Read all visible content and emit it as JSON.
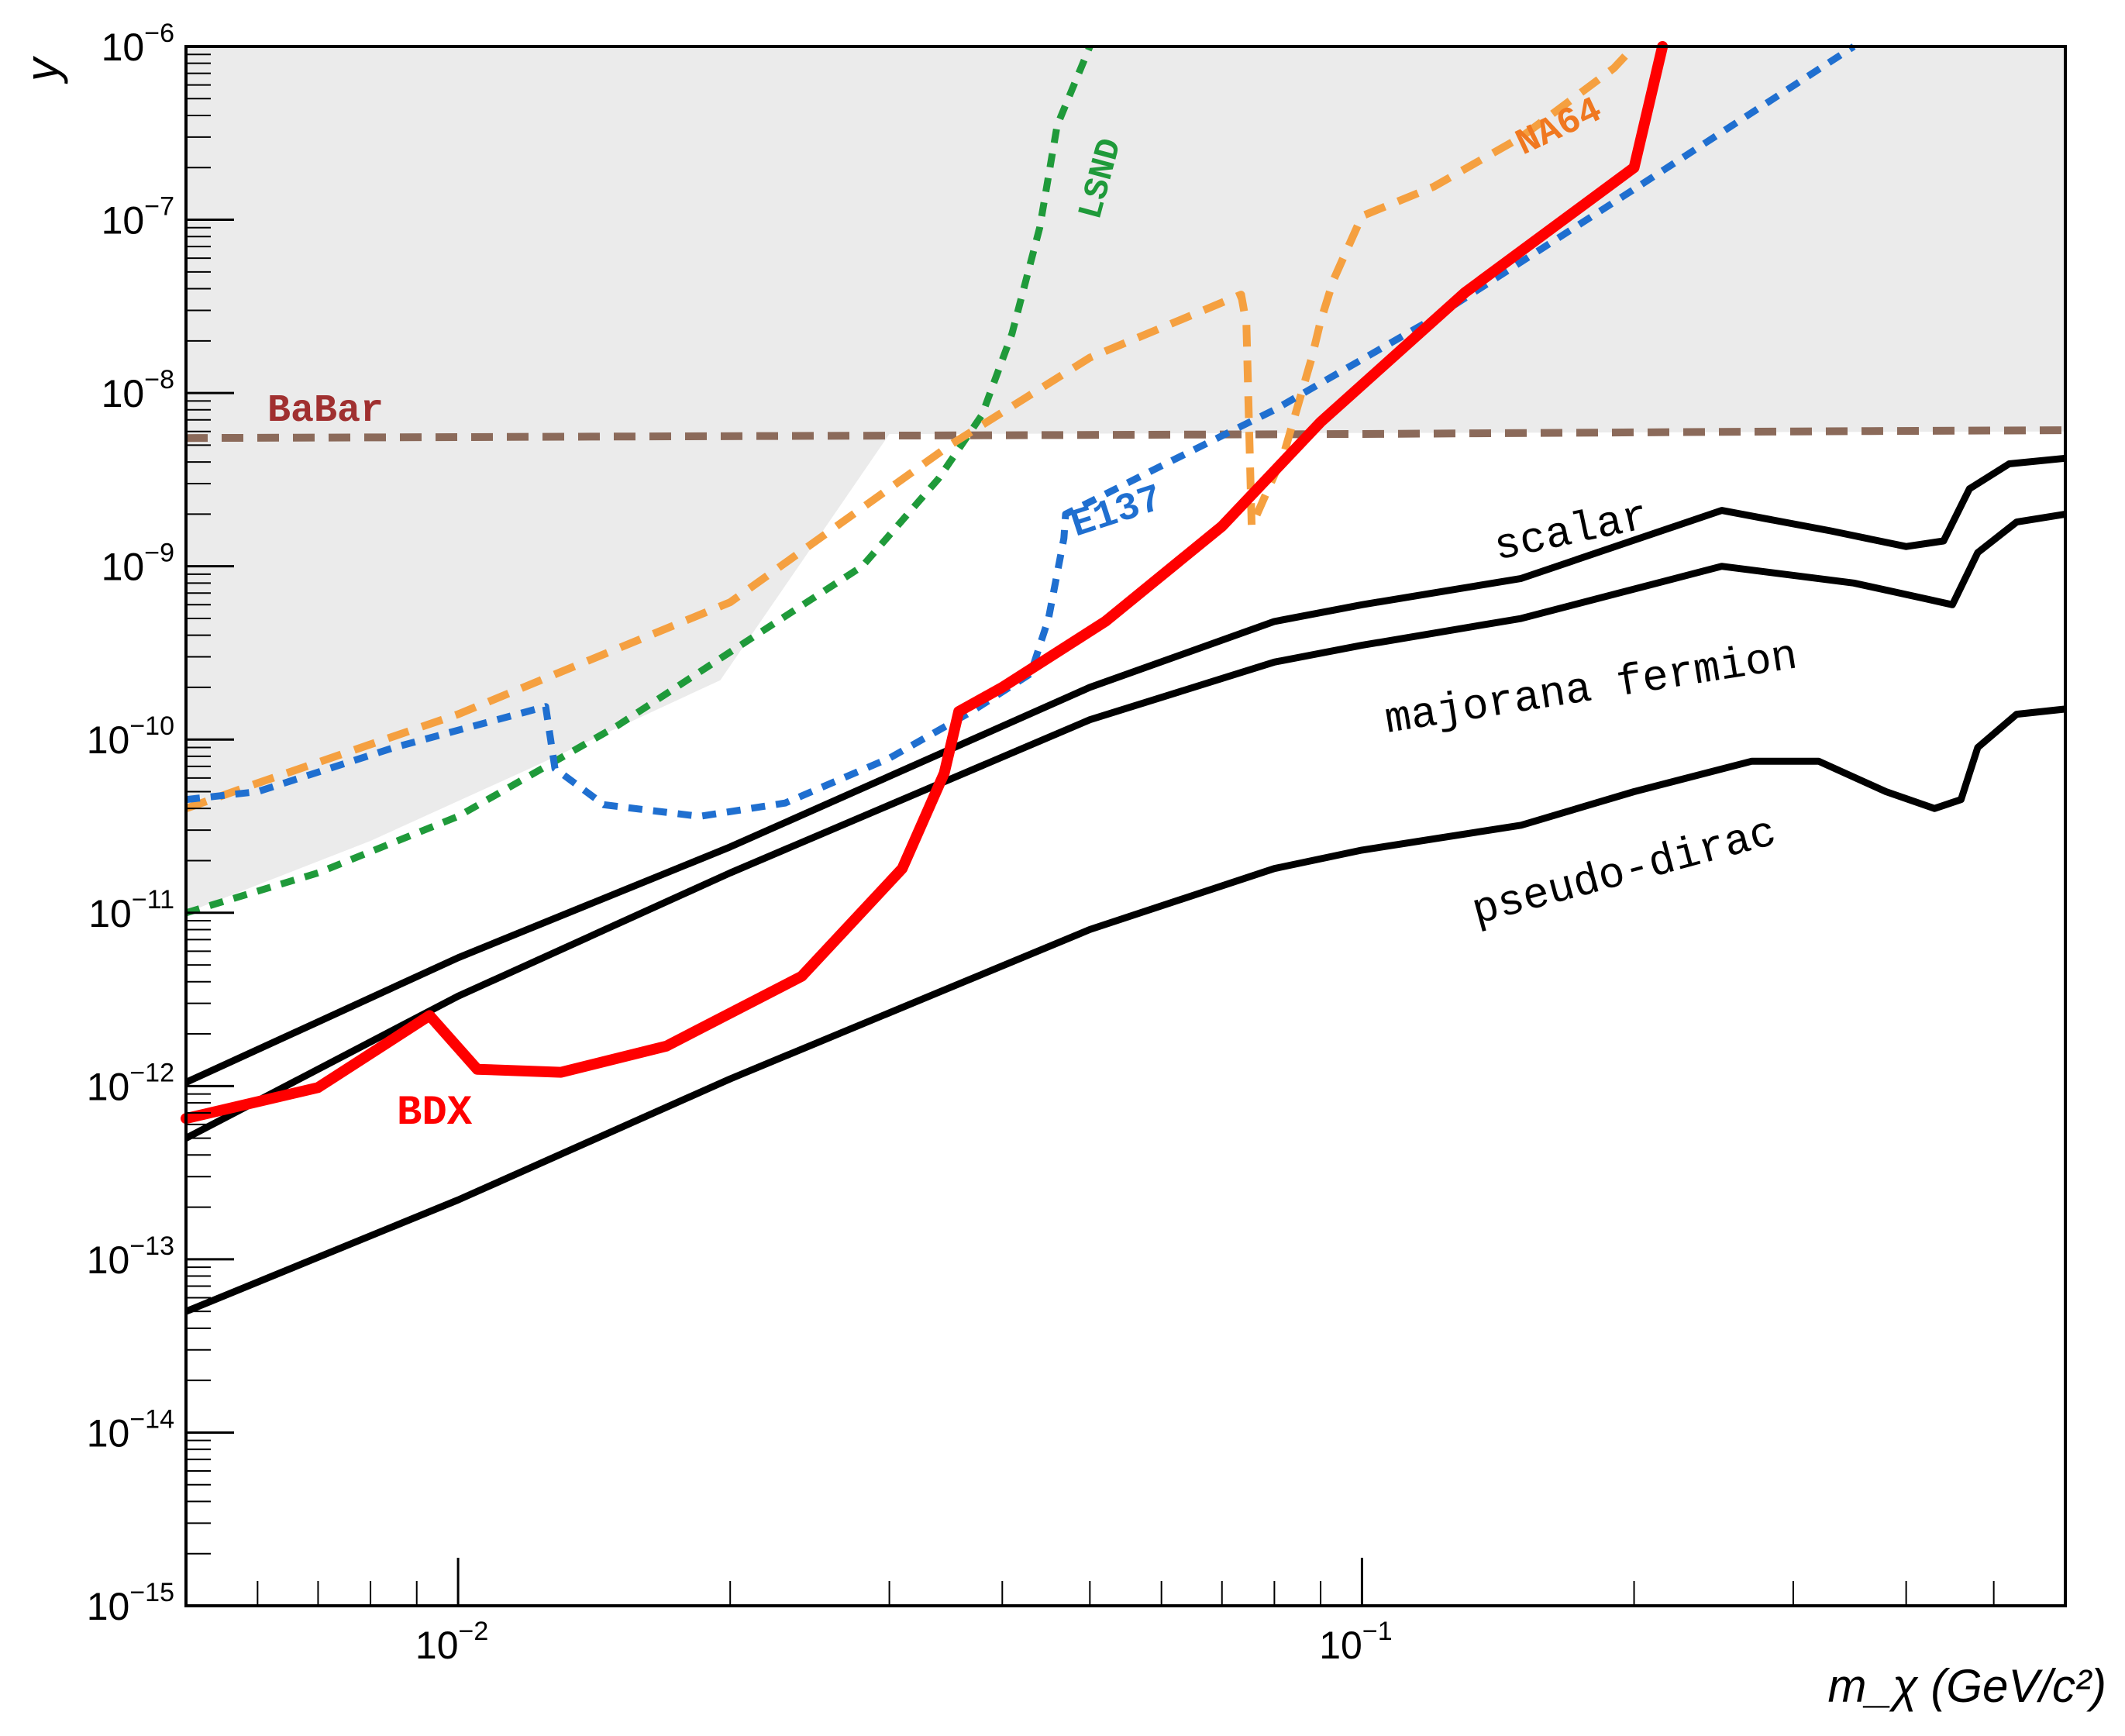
{
  "chart_data": {
    "type": "line",
    "title": "",
    "xlabel": "m_χ (GeV/c²)",
    "ylabel": "y",
    "xscale": "log",
    "yscale": "log",
    "xlim": [
      0.005,
      0.6
    ],
    "ylim": [
      1e-15,
      1e-06
    ],
    "x_ticks": [
      {
        "value": 0.01,
        "base": "10",
        "exp": "−2"
      },
      {
        "value": 0.1,
        "base": "10",
        "exp": "−1"
      }
    ],
    "y_ticks": [
      {
        "value": 1e-06,
        "base": "10",
        "exp": "−6"
      },
      {
        "value": 1e-07,
        "base": "10",
        "exp": "−7"
      },
      {
        "value": 1e-08,
        "base": "10",
        "exp": "−8"
      },
      {
        "value": 1e-09,
        "base": "10",
        "exp": "−9"
      },
      {
        "value": 1e-10,
        "base": "10",
        "exp": "−10"
      },
      {
        "value": 1e-11,
        "base": "10",
        "exp": "−11"
      },
      {
        "value": 1e-12,
        "base": "10",
        "exp": "−12"
      },
      {
        "value": 1e-13,
        "base": "10",
        "exp": "−13"
      },
      {
        "value": 1e-14,
        "base": "10",
        "exp": "−14"
      },
      {
        "value": 1e-15,
        "base": "10",
        "exp": "−15"
      }
    ],
    "colors": {
      "excluded_fill": "#ebebeb",
      "bdx": "#ff0000",
      "babar": "#8b6a5a",
      "babar_label": "#a03030",
      "e137": "#1f6fd0",
      "lsnd": "#1f9a3a",
      "na64": "#f5a040",
      "na64_label": "#f07820",
      "theory": "#000000"
    },
    "excluded_region": [
      [
        0.005,
        1e-06
      ],
      [
        0.6,
        1e-06
      ],
      [
        0.6,
        6e-09
      ],
      [
        0.03,
        5.8e-09
      ],
      [
        0.027,
        2.6e-09
      ],
      [
        0.0195,
        2.2e-10
      ],
      [
        0.012,
        6.8e-11
      ],
      [
        0.008,
        2.6e-11
      ],
      [
        0.005,
        1e-11
      ]
    ],
    "series": [
      {
        "name": "BDX",
        "style": "solid-thick",
        "color_key": "bdx",
        "points": [
          [
            0.005,
            6.5e-13
          ],
          [
            0.007,
            9.8e-13
          ],
          [
            0.0093,
            2.55e-12
          ],
          [
            0.0105,
            1.25e-12
          ],
          [
            0.013,
            1.2e-12
          ],
          [
            0.017,
            1.7e-12
          ],
          [
            0.024,
            4.3e-12
          ],
          [
            0.031,
            1.8e-11
          ],
          [
            0.0345,
            6.4e-11
          ],
          [
            0.0358,
            1.45e-10
          ],
          [
            0.04,
            2e-10
          ],
          [
            0.052,
            4.8e-10
          ],
          [
            0.07,
            1.7e-09
          ],
          [
            0.09,
            6.8e-09
          ],
          [
            0.13,
            3.8e-08
          ],
          [
            0.2,
            2e-07
          ],
          [
            0.215,
            1e-06
          ]
        ]
      },
      {
        "name": "BaBar",
        "style": "dashed",
        "color_key": "babar",
        "points": [
          [
            0.005,
            5.5e-09
          ],
          [
            0.1,
            5.8e-09
          ],
          [
            0.3,
            6e-09
          ],
          [
            0.6,
            6.1e-09
          ]
        ]
      },
      {
        "name": "E137",
        "style": "dotted",
        "color_key": "e137",
        "points": [
          [
            0.005,
            4.5e-11
          ],
          [
            0.006,
            5e-11
          ],
          [
            0.0085,
            9e-11
          ],
          [
            0.0125,
            1.55e-10
          ],
          [
            0.0128,
            6.8e-11
          ],
          [
            0.0145,
            4.2e-11
          ],
          [
            0.0185,
            3.6e-11
          ],
          [
            0.023,
            4.3e-11
          ],
          [
            0.03,
            7.8e-11
          ],
          [
            0.037,
            1.45e-10
          ],
          [
            0.043,
            2.4e-10
          ],
          [
            0.045,
            5e-10
          ],
          [
            0.0468,
            1.45e-09
          ],
          [
            0.047,
            2e-09
          ],
          [
            0.06,
            3.8e-09
          ],
          [
            0.08,
            8e-09
          ],
          [
            0.12,
            2.7e-08
          ],
          [
            0.2,
            1.5e-07
          ],
          [
            0.35,
            1e-06
          ]
        ]
      },
      {
        "name": "LSND",
        "style": "dotted",
        "color_key": "lsnd",
        "points": [
          [
            0.005,
            1e-11
          ],
          [
            0.007,
            1.7e-11
          ],
          [
            0.01,
            3.6e-11
          ],
          [
            0.015,
            1.2e-10
          ],
          [
            0.02,
            3.2e-10
          ],
          [
            0.028,
            1e-09
          ],
          [
            0.034,
            3.2e-09
          ],
          [
            0.038,
            7.5e-09
          ],
          [
            0.041,
            2.2e-08
          ],
          [
            0.044,
            9e-08
          ],
          [
            0.046,
            3.5e-07
          ],
          [
            0.05,
            1e-06
          ]
        ]
      },
      {
        "name": "NA64",
        "style": "dashed",
        "color_key": "na64",
        "points": [
          [
            0.005,
            4e-11
          ],
          [
            0.006,
            5.6e-11
          ],
          [
            0.01,
            1.4e-10
          ],
          [
            0.02,
            6.2e-10
          ],
          [
            0.035,
            5e-09
          ],
          [
            0.05,
            1.6e-08
          ],
          [
            0.0735,
            3.7e-08
          ],
          [
            0.0745,
            2.5e-08
          ],
          [
            0.0755,
            1.7e-09
          ],
          [
            0.082,
            4.5e-09
          ],
          [
            0.088,
            1.6e-08
          ],
          [
            0.09,
            2.6e-08
          ],
          [
            0.093,
            4.5e-08
          ],
          [
            0.1,
            1.05e-07
          ],
          [
            0.12,
            1.55e-07
          ],
          [
            0.15,
            3e-07
          ],
          [
            0.19,
            7.5e-07
          ],
          [
            0.2,
            1e-06
          ]
        ]
      },
      {
        "name": "scalar",
        "style": "solid",
        "color_key": "theory",
        "points": [
          [
            0.005,
            1.05e-12
          ],
          [
            0.01,
            5.5e-12
          ],
          [
            0.02,
            2.4e-11
          ],
          [
            0.05,
            2e-10
          ],
          [
            0.08,
            4.8e-10
          ],
          [
            0.1,
            6e-10
          ],
          [
            0.15,
            8.5e-10
          ],
          [
            0.25,
            2.1e-09
          ],
          [
            0.33,
            1.6e-09
          ],
          [
            0.4,
            1.3e-09
          ],
          [
            0.44,
            1.4e-09
          ],
          [
            0.47,
            2.8e-09
          ],
          [
            0.52,
            3.9e-09
          ],
          [
            0.6,
            4.2e-09
          ]
        ]
      },
      {
        "name": "majorana fermion",
        "style": "solid",
        "color_key": "theory",
        "points": [
          [
            0.005,
            5e-13
          ],
          [
            0.01,
            3.3e-12
          ],
          [
            0.02,
            1.7e-11
          ],
          [
            0.05,
            1.3e-10
          ],
          [
            0.08,
            2.8e-10
          ],
          [
            0.1,
            3.5e-10
          ],
          [
            0.15,
            5e-10
          ],
          [
            0.25,
            1e-09
          ],
          [
            0.35,
            8e-10
          ],
          [
            0.42,
            6.5e-10
          ],
          [
            0.45,
            6e-10
          ],
          [
            0.48,
            1.2e-09
          ],
          [
            0.53,
            1.8e-09
          ],
          [
            0.6,
            2e-09
          ]
        ]
      },
      {
        "name": "pseudo-dirac",
        "style": "solid",
        "color_key": "theory",
        "points": [
          [
            0.005,
            5e-14
          ],
          [
            0.01,
            2.2e-13
          ],
          [
            0.02,
            1.1e-12
          ],
          [
            0.05,
            8e-12
          ],
          [
            0.08,
            1.8e-11
          ],
          [
            0.1,
            2.3e-11
          ],
          [
            0.15,
            3.2e-11
          ],
          [
            0.2,
            5e-11
          ],
          [
            0.27,
            7.5e-11
          ],
          [
            0.32,
            7.5e-11
          ],
          [
            0.38,
            5e-11
          ],
          [
            0.43,
            4e-11
          ],
          [
            0.46,
            4.5e-11
          ],
          [
            0.48,
            9e-11
          ],
          [
            0.53,
            1.4e-10
          ],
          [
            0.6,
            1.5e-10
          ]
        ]
      }
    ],
    "labels": {
      "BaBar": "BaBar",
      "E137": "E137",
      "LSND": "LSND",
      "NA64": "NA64",
      "BDX": "BDX",
      "scalar": "scalar",
      "majorana": "majorana fermion",
      "pseudo": "pseudo-dirac"
    }
  }
}
